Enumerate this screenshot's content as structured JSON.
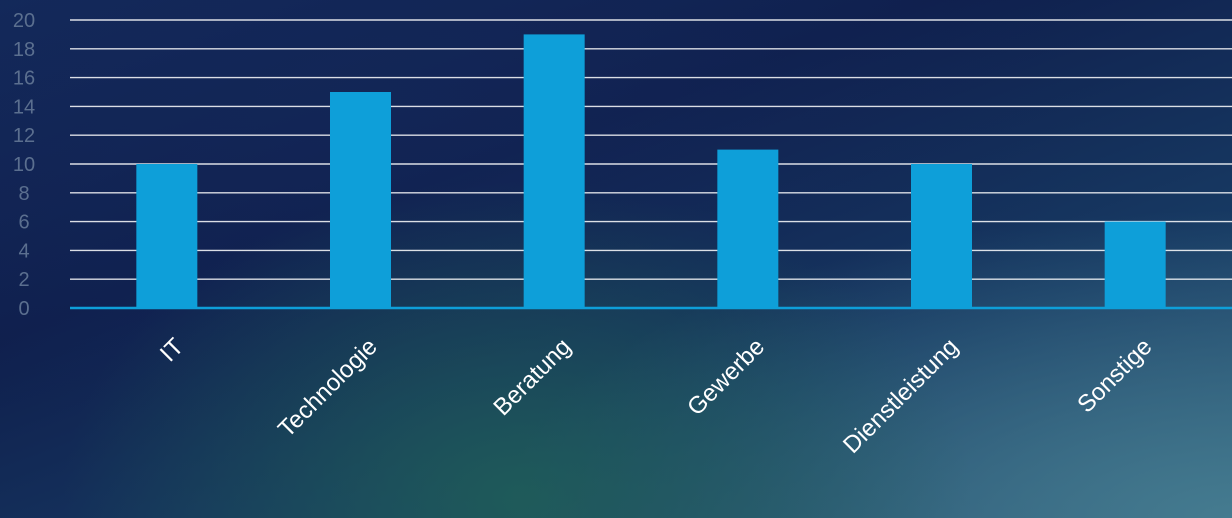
{
  "chart_data": {
    "type": "bar",
    "categories": [
      "IT",
      "Technologie",
      "Beratung",
      "Gewerbe",
      "Dienstleistung",
      "Sonstige"
    ],
    "values": [
      10,
      15,
      19,
      11,
      10,
      6
    ],
    "ylim": [
      0,
      20
    ],
    "y_ticks": [
      0,
      2,
      4,
      6,
      8,
      10,
      12,
      14,
      16,
      18,
      20
    ],
    "grid": true,
    "legend": "none",
    "bar_color": "#0e9fd9",
    "grid_color": "#ffffff",
    "baseline_color": "#0e9fd9",
    "tick_label_color": "#5b6f8f",
    "category_label_color": "#ffffff"
  }
}
